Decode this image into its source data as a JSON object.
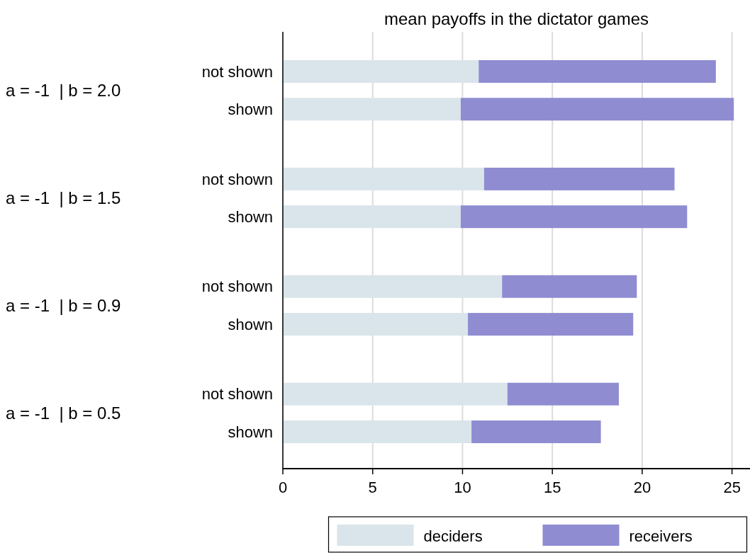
{
  "chart_data": {
    "type": "bar",
    "orientation": "horizontal",
    "stacked": true,
    "title": "mean payoffs in the dictator games",
    "categories": [
      "not shown",
      "shown",
      "not shown",
      "shown",
      "not shown",
      "shown",
      "not shown",
      "shown"
    ],
    "annotations": [
      "a = -1  | b = 2.0",
      "a = -1  | b = 1.5",
      "a = -1  | b = 0.9",
      "a = -1  | b = 0.5"
    ],
    "series": [
      {
        "name": "deciders",
        "color": "#d9e5ea",
        "values": [
          10.9,
          9.9,
          11.2,
          9.9,
          12.2,
          10.3,
          12.5,
          10.5
        ]
      },
      {
        "name": "receivers",
        "color": "#8f8cd2",
        "values": [
          13.2,
          15.2,
          10.6,
          12.6,
          7.5,
          9.2,
          6.2,
          7.2
        ]
      }
    ],
    "xlim": [
      0,
      26
    ],
    "xticks": [
      0,
      5,
      10,
      15,
      20,
      25
    ],
    "grid": "x",
    "legend": "bottom"
  }
}
